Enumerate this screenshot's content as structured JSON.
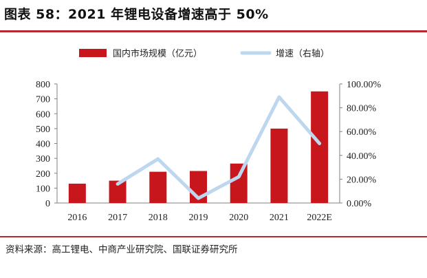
{
  "header": {
    "title": "图表 58：2021 年锂电设备增速高于 50%"
  },
  "footer": {
    "source": "资料来源：高工锂电、中商产业研究院、国联证券研究所"
  },
  "colors": {
    "bar": "#c8161d",
    "line": "#bdd7ee",
    "rule": "#b7282e"
  },
  "chart_data": {
    "type": "bar",
    "categories": [
      "2016",
      "2017",
      "2018",
      "2019",
      "2020",
      "2021",
      "2022E"
    ],
    "series": [
      {
        "name": "国内市场规模（亿元）",
        "type": "bar",
        "axis": "left",
        "values": [
          130,
          150,
          210,
          215,
          265,
          500,
          750
        ]
      },
      {
        "name": "增速（右轴）",
        "type": "line",
        "axis": "right",
        "values": [
          null,
          16.0,
          37.0,
          4.0,
          22.0,
          89.0,
          50.0
        ]
      }
    ],
    "y_left": {
      "min": 0,
      "max": 800,
      "ticks": [
        "0",
        "100",
        "200",
        "300",
        "400",
        "500",
        "600",
        "700",
        "800"
      ]
    },
    "y_right": {
      "min": 0,
      "max": 100,
      "ticks": [
        "0.00%",
        "20.00%",
        "40.00%",
        "60.00%",
        "80.00%",
        "100.00%"
      ]
    },
    "legend_position": "top",
    "grid": false
  }
}
